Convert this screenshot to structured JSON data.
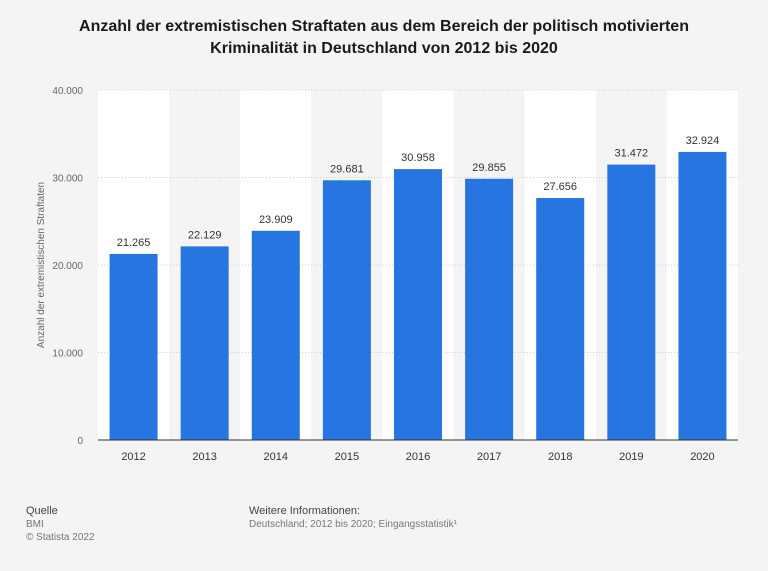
{
  "title": {
    "line1": "Anzahl der extremistischen Straftaten aus dem Bereich der politisch motivierten",
    "line2": "Kriminalität in Deutschland von 2012 bis 2020"
  },
  "chart_data": {
    "type": "bar",
    "title": "Anzahl der extremistischen Straftaten aus dem Bereich der politisch motivierten Kriminalität in Deutschland von 2012 bis 2020",
    "xlabel": "",
    "ylabel": "Anzahl der extremistischen Straftaten",
    "categories": [
      "2012",
      "2013",
      "2014",
      "2015",
      "2016",
      "2017",
      "2018",
      "2019",
      "2020"
    ],
    "values": [
      21265,
      22129,
      23909,
      29681,
      30958,
      29855,
      27656,
      31472,
      32924
    ],
    "value_labels": [
      "21.265",
      "22.129",
      "23.909",
      "29.681",
      "30.958",
      "29.855",
      "27.656",
      "31.472",
      "32.924"
    ],
    "ylim": [
      0,
      40000
    ],
    "yticks": [
      0,
      10000,
      20000,
      30000,
      40000
    ],
    "ytick_labels": [
      "0",
      "10.000",
      "20.000",
      "30.000",
      "40.000"
    ],
    "grid": true,
    "bar_color": "#2675e0"
  },
  "footer": {
    "source_label": "Quelle",
    "source": "BMI",
    "copyright": "© Statista 2022",
    "info_label": "Weitere Informationen:",
    "info": "Deutschland; 2012 bis 2020; Eingangsstatistik¹"
  }
}
